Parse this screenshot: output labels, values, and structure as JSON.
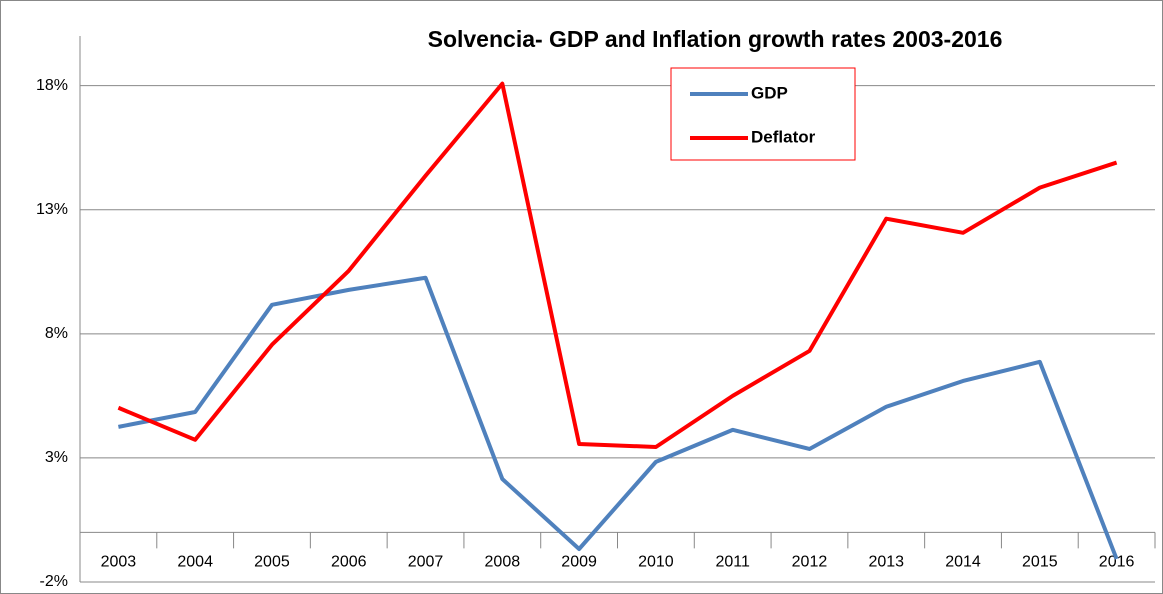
{
  "chart_data": {
    "type": "line",
    "title": "Solvencia- GDP and Inflation growth rates 2003-2016",
    "categories": [
      "2003",
      "2004",
      "2005",
      "2006",
      "2007",
      "2008",
      "2009",
      "2010",
      "2011",
      "2012",
      "2013",
      "2014",
      "2015",
      "2016"
    ],
    "series": [
      {
        "name": "GDP",
        "color": "#4f81bd",
        "values": [
          4.25,
          4.85,
          9.17,
          9.77,
          10.26,
          2.15,
          -0.67,
          2.84,
          4.13,
          3.36,
          5.06,
          6.1,
          6.87,
          -1.07
        ]
      },
      {
        "name": "Deflator",
        "color": "#ff0000",
        "values": [
          5.02,
          3.73,
          7.56,
          10.54,
          14.37,
          18.08,
          3.56,
          3.44,
          5.5,
          7.31,
          12.64,
          12.07,
          13.89,
          14.9
        ]
      }
    ],
    "ylim": [
      -2,
      20
    ],
    "yticks": [
      {
        "value": -2,
        "label": "-2%"
      },
      {
        "value": 3,
        "label": "3%"
      },
      {
        "value": 8,
        "label": "8%"
      },
      {
        "value": 13,
        "label": "13%"
      },
      {
        "value": 18,
        "label": "18%"
      }
    ],
    "grid": true,
    "legend": "top"
  }
}
